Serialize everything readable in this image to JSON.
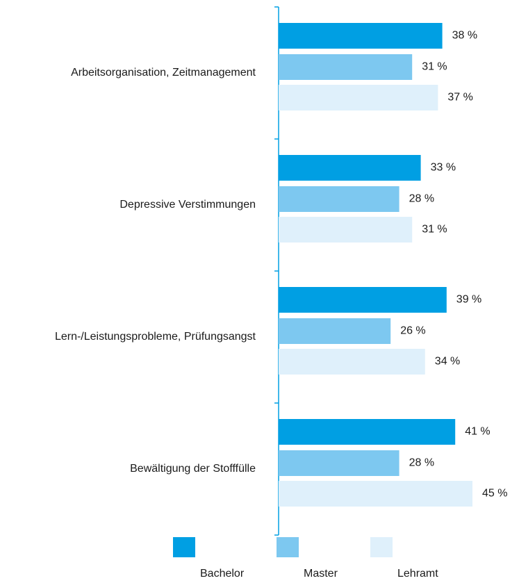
{
  "chart_data": {
    "type": "bar",
    "orientation": "horizontal",
    "categories": [
      "Arbeitsorganisation, Zeitmanagement",
      "Depressive Verstimmungen",
      "Lern-/Leistungsprobleme, Prüfungsangst",
      "Bewältigung der Stofffülle"
    ],
    "series": [
      {
        "name": "Bachelor",
        "color": "#009fe3",
        "values": [
          38,
          33,
          39,
          41
        ],
        "value_labels": [
          "38 %",
          "33 %",
          "39 %",
          "41 %"
        ]
      },
      {
        "name": "Master",
        "color": "#7dc8f0",
        "values": [
          31,
          28,
          26,
          28
        ],
        "value_labels": [
          "31 %",
          "28 %",
          "26 %",
          "28 %"
        ]
      },
      {
        "name": "Lehramt",
        "color": "#dff0fb",
        "values": [
          37,
          31,
          34,
          45
        ],
        "value_labels": [
          "37 %",
          "31 %",
          "34 %",
          "45 %"
        ]
      }
    ]
  }
}
